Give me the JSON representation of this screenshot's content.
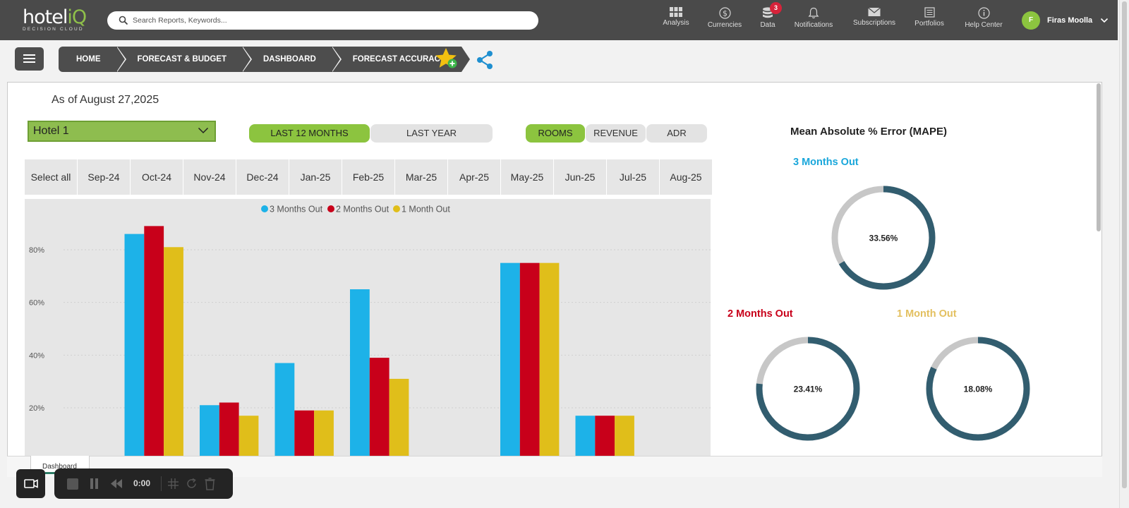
{
  "app": {
    "logo_word": "hotel",
    "logo_iq": "iQ",
    "logo_tagline": "DECISION CLOUD",
    "search_placeholder": "Search Reports, Keywords..."
  },
  "nav": [
    {
      "label": "Analysis",
      "icon": "grid-icon"
    },
    {
      "label": "Currencies",
      "icon": "dollar-icon"
    },
    {
      "label": "Data",
      "icon": "database-icon",
      "badge": "3"
    },
    {
      "label": "Notifications",
      "icon": "bell-icon"
    },
    {
      "label": "Subscriptions",
      "icon": "envelope-icon"
    },
    {
      "label": "Portfolios",
      "icon": "portfolio-icon"
    },
    {
      "label": "Help Center",
      "icon": "info-icon"
    }
  ],
  "user": {
    "initial": "F",
    "name": "Firas Moolla"
  },
  "breadcrumbs": [
    "HOME",
    "FORECAST & BUDGET",
    "DASHBOARD",
    "FORECAST ACCURACY"
  ],
  "report": {
    "as_of": "As of August 27,2025",
    "hotel": "Hotel 1",
    "period_buttons": [
      "LAST 12 MONTHS",
      "LAST YEAR"
    ],
    "metric_buttons": [
      "ROOMS",
      "REVENUE",
      "ADR"
    ],
    "months": [
      "Select all",
      "Sep-24",
      "Oct-24",
      "Nov-24",
      "Dec-24",
      "Jan-25",
      "Feb-25",
      "Mar-25",
      "Apr-25",
      "May-25",
      "Jun-25",
      "Jul-25",
      "Aug-25"
    ]
  },
  "chart_data": {
    "type": "bar",
    "categories": [
      "Sep-24",
      "Oct-24",
      "Nov-24",
      "Dec-24",
      "Jan-25",
      "Feb-25",
      "Mar-25",
      "Apr-25",
      "May-25",
      "Jun-25",
      "Jul-25",
      "Aug-25"
    ],
    "series": [
      {
        "name": "3 Months Out",
        "color": "#1db2e8",
        "values": [
          null,
          86,
          21,
          37,
          65,
          null,
          75,
          17,
          null,
          null,
          null,
          null
        ]
      },
      {
        "name": "2 Months Out",
        "color": "#c8001a",
        "values": [
          null,
          89,
          22,
          19,
          39,
          null,
          75,
          17,
          null,
          null,
          null,
          null
        ]
      },
      {
        "name": "1 Month Out",
        "color": "#e0be1a",
        "values": [
          null,
          81,
          17,
          19,
          31,
          null,
          75,
          17,
          null,
          null,
          null,
          null
        ]
      }
    ],
    "yticks": [
      "20%",
      "40%",
      "60%",
      "80%"
    ],
    "ytick_values": [
      20,
      40,
      60,
      80
    ],
    "ylim": [
      -15,
      95
    ],
    "legend_position": "top-center",
    "grid": true
  },
  "mape": {
    "title": "Mean Absolute % Error (MAPE)",
    "donuts": [
      {
        "label": "3 Months Out",
        "value": 33.56,
        "text": "33.56%",
        "label_color": "#1aa7db"
      },
      {
        "label": "2 Months Out",
        "value": 23.41,
        "text": "23.41%",
        "label_color": "#c8001a"
      },
      {
        "label": "1 Month Out",
        "value": 18.08,
        "text": "18.08%",
        "label_color": "#e3c060"
      }
    ]
  },
  "footer": {
    "sheet_tab": "Dashboard",
    "recorder_time": "0:00"
  },
  "colors": {
    "accent": "#8cc43f",
    "topbar": "#4a4a4a",
    "donut_ring": "#325d6f"
  }
}
